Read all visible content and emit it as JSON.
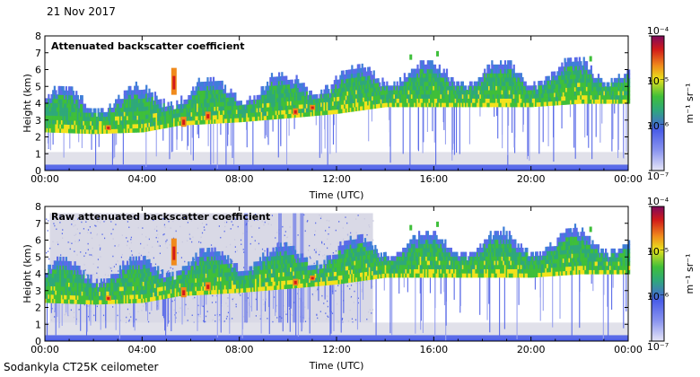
{
  "date": "21 Nov 2017",
  "footer": "Sodankyla CT25K ceilometer",
  "colorbar_unit": "m⁻¹ sr⁻¹",
  "chart_data": [
    {
      "type": "heatmap",
      "title": "Attenuated backscatter coefficient",
      "xlabel": "Time (UTC)",
      "ylabel": "Height (km)",
      "x_ticks": [
        "00:00",
        "04:00",
        "08:00",
        "12:00",
        "16:00",
        "20:00",
        "00:00"
      ],
      "y_ticks": [
        "0",
        "1",
        "2",
        "3",
        "4",
        "5",
        "6",
        "7",
        "8"
      ],
      "xlim_hours": [
        0,
        24
      ],
      "ylim_km": [
        0,
        8
      ],
      "colorbar": {
        "scale": "log",
        "ticks": [
          "10⁻⁷",
          "10⁻⁶",
          "10⁻⁵",
          "10⁻⁴"
        ],
        "range": [
          1e-07,
          0.0001
        ],
        "colors": [
          "#e6e6f7",
          "#5a6be8",
          "#3fae4a",
          "#f2e21d",
          "#f08a1c",
          "#d11a1a",
          "#8b0b5c"
        ]
      },
      "cloud_layer_base_km": [
        {
          "hour": 0.0,
          "base": 2.3
        },
        {
          "hour": 2.0,
          "base": 2.2
        },
        {
          "hour": 4.0,
          "base": 2.3
        },
        {
          "hour": 5.5,
          "base": 2.7
        },
        {
          "hour": 8.0,
          "base": 2.9
        },
        {
          "hour": 10.5,
          "base": 3.2
        },
        {
          "hour": 12.0,
          "base": 3.4
        },
        {
          "hour": 14.0,
          "base": 3.8
        },
        {
          "hour": 16.0,
          "base": 3.8
        },
        {
          "hour": 18.0,
          "base": 3.8
        },
        {
          "hour": 20.0,
          "base": 3.8
        },
        {
          "hour": 22.0,
          "base": 4.0
        },
        {
          "hour": 24.0,
          "base": 4.0
        }
      ]
    },
    {
      "type": "heatmap",
      "title": "Raw attenuated backscatter coefficient",
      "xlabel": "Time (UTC)",
      "ylabel": "Height (km)",
      "x_ticks": [
        "00:00",
        "04:00",
        "08:00",
        "12:00",
        "16:00",
        "20:00",
        "00:00"
      ],
      "y_ticks": [
        "0",
        "1",
        "2",
        "3",
        "4",
        "5",
        "6",
        "7",
        "8"
      ],
      "xlim_hours": [
        0,
        24
      ],
      "ylim_km": [
        0,
        8
      ],
      "colorbar": {
        "scale": "log",
        "ticks": [
          "10⁻⁷",
          "10⁻⁶",
          "10⁻⁵",
          "10⁻⁴"
        ],
        "range": [
          1e-07,
          0.0001
        ],
        "colors": [
          "#e6e6f7",
          "#5a6be8",
          "#3fae4a",
          "#f2e21d",
          "#f08a1c",
          "#d11a1a",
          "#8b0b5c"
        ]
      }
    }
  ]
}
